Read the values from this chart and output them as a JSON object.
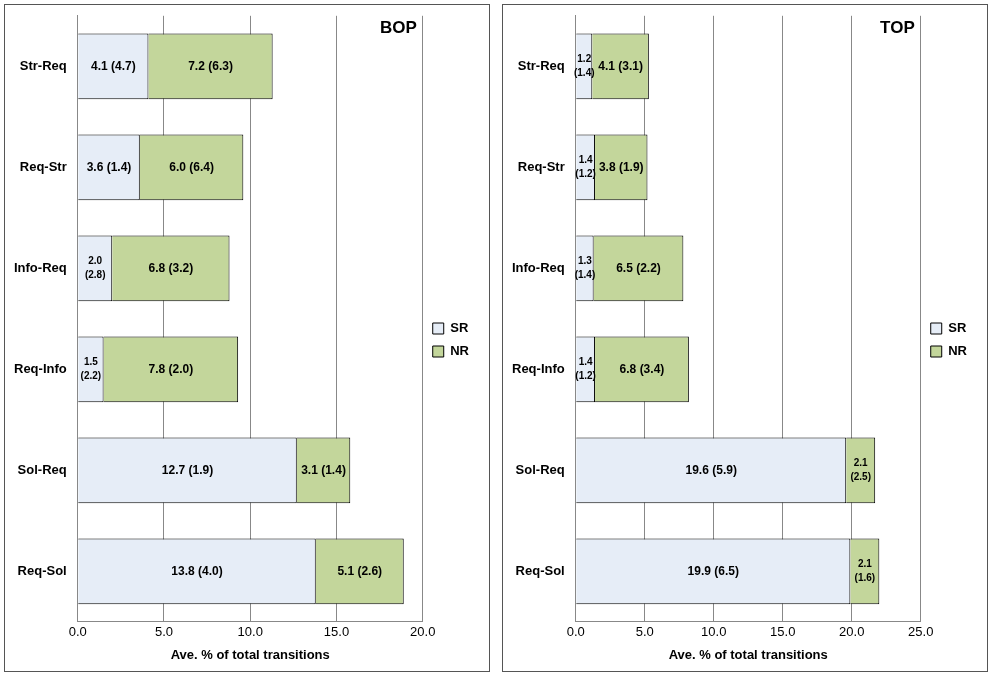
{
  "chart_data": [
    {
      "type": "bar",
      "orientation": "horizontal",
      "stacked": true,
      "title": "BOP",
      "xlabel": "Ave. % of total transitions",
      "categories": [
        "Str-Req",
        "Req-Str",
        "Info-Req",
        "Req-Info",
        "Sol-Req",
        "Req-Sol"
      ],
      "xlim": [
        0,
        20
      ],
      "xticks": [
        {
          "value": 0,
          "label": "0.0"
        },
        {
          "value": 5,
          "label": "5.0"
        },
        {
          "value": 10,
          "label": "10.0"
        },
        {
          "value": 15,
          "label": "15.0"
        },
        {
          "value": 20,
          "label": "20.0"
        }
      ],
      "grid": "x",
      "legend": "right",
      "series": [
        {
          "name": "SR",
          "color": "#e6edf7",
          "values": [
            4.1,
            3.6,
            2.0,
            1.5,
            12.7,
            13.8
          ],
          "value_labels": [
            "4.1 (4.7)",
            "3.6 (1.4)",
            "2.0 (2.8)",
            "1.5 (2.2)",
            "12.7 (1.9)",
            "13.8 (4.0)"
          ]
        },
        {
          "name": "NR",
          "color": "#c3d69b",
          "values": [
            7.2,
            6.0,
            6.8,
            7.8,
            3.1,
            5.1
          ],
          "value_labels": [
            "7.2 (6.3)",
            "6.0 (6.4)",
            "6.8 (3.2)",
            "7.8 (2.0)",
            "3.1 (1.4)",
            "5.1 (2.6)"
          ]
        }
      ]
    },
    {
      "type": "bar",
      "orientation": "horizontal",
      "stacked": true,
      "title": "TOP",
      "xlabel": "Ave. % of total transitions",
      "categories": [
        "Str-Req",
        "Req-Str",
        "Info-Req",
        "Req-Info",
        "Sol-Req",
        "Req-Sol"
      ],
      "xlim": [
        0,
        25
      ],
      "xticks": [
        {
          "value": 0,
          "label": "0.0"
        },
        {
          "value": 5,
          "label": "5.0"
        },
        {
          "value": 10,
          "label": "10.0"
        },
        {
          "value": 15,
          "label": "15.0"
        },
        {
          "value": 20,
          "label": "20.0"
        },
        {
          "value": 25,
          "label": "25.0"
        }
      ],
      "grid": "x",
      "legend": "right",
      "series": [
        {
          "name": "SR",
          "color": "#e6edf7",
          "values": [
            1.2,
            1.4,
            1.3,
            1.4,
            19.6,
            19.9
          ],
          "value_labels": [
            "1.2 (1.4)",
            "1.4 (1.2)",
            "1.3 (1.4)",
            "1.4 (1.2)",
            "19.6 (5.9)",
            "19.9 (6.5)"
          ]
        },
        {
          "name": "NR",
          "color": "#c3d69b",
          "values": [
            4.1,
            3.8,
            6.5,
            6.8,
            2.1,
            2.1
          ],
          "value_labels": [
            "4.1 (3.1)",
            "3.8 (1.9)",
            "6.5 (2.2)",
            "6.8 (3.4)",
            "2.1 (2.5)",
            "2.1 (1.6)"
          ]
        }
      ]
    }
  ]
}
